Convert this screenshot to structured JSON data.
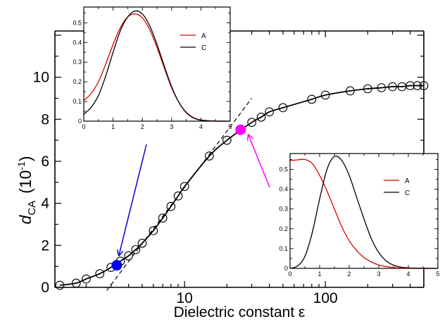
{
  "chart_data": [
    {
      "type": "scatter",
      "xlabel": "Dielectric constant ε",
      "ylabel": {
        "main": "d",
        "sub": "CA",
        "unit_base": "(10",
        "unit_exp": "-1",
        "unit_close": ")"
      },
      "xscale": "log",
      "xlim": [
        1.2,
        500
      ],
      "ylim": [
        0,
        12.2
      ],
      "x_ticks": [
        10,
        100
      ],
      "x_tick_labels": [
        "10",
        "100"
      ],
      "y_ticks": [
        0,
        2,
        4,
        6,
        8,
        10
      ],
      "y_tick_labels": [
        "0",
        "2",
        "4",
        "6",
        "8",
        "10"
      ],
      "series": [
        {
          "marker": "open-circle",
          "x": [
            1.3,
            1.7,
            2.0,
            2.5,
            3.0,
            3.5,
            4.0,
            4.5,
            5.0,
            6.0,
            7.0,
            8.0,
            9.0,
            10.0,
            15.0,
            20.0,
            30.0,
            35.0,
            40.0,
            50.0,
            80.0,
            100.0,
            150.0,
            200.0,
            250.0,
            300.0,
            350.0,
            400.0,
            450.0,
            500.0
          ],
          "y": [
            0.1,
            0.2,
            0.4,
            0.65,
            0.95,
            1.25,
            1.5,
            1.8,
            2.1,
            2.7,
            3.3,
            3.85,
            4.35,
            4.8,
            6.25,
            7.0,
            7.85,
            8.1,
            8.35,
            8.55,
            8.95,
            9.15,
            9.35,
            9.45,
            9.5,
            9.55,
            9.55,
            9.6,
            9.6,
            9.6
          ]
        }
      ],
      "fit_curve": {
        "style": "solid",
        "x": [
          1.3,
          1.7,
          2.0,
          2.5,
          3.0,
          3.5,
          4.0,
          4.5,
          5.0,
          6.0,
          7.0,
          8.0,
          9.0,
          10.0,
          15.0,
          20.0,
          30.0,
          35.0,
          40.0,
          50.0,
          80.0,
          100.0,
          150.0,
          200.0,
          250.0,
          300.0,
          350.0,
          400.0,
          450.0,
          500.0
        ],
        "y": [
          0.1,
          0.2,
          0.4,
          0.65,
          0.95,
          1.25,
          1.5,
          1.8,
          2.1,
          2.7,
          3.3,
          3.85,
          4.35,
          4.8,
          6.25,
          7.0,
          7.85,
          8.1,
          8.35,
          8.55,
          8.95,
          9.15,
          9.35,
          9.45,
          9.5,
          9.55,
          9.55,
          9.6,
          9.6,
          9.6
        ]
      },
      "linear_fit": {
        "style": "dashed",
        "x": [
          2.8,
          30.0
        ],
        "y": [
          -0.15,
          9.0
        ]
      },
      "highlights": [
        {
          "x": 3.3,
          "y": 1.05,
          "color": "#0000ee",
          "arrow_color": "#0000cc"
        },
        {
          "x": 25.0,
          "y": 7.5,
          "color": "#ff00ff",
          "arrow_color": "#ff00ff"
        }
      ]
    },
    {
      "type": "line",
      "xlim": [
        0,
        5
      ],
      "ylim": [
        0,
        0.58
      ],
      "x_ticks": [
        0,
        1,
        2,
        3,
        4,
        5
      ],
      "x_tick_labels": [
        "0",
        "1",
        "2",
        "3",
        "4",
        "5"
      ],
      "y_ticks": [
        0,
        0.1,
        0.2,
        0.3,
        0.4,
        0.5
      ],
      "y_tick_labels": [
        "0",
        "0.1",
        "0.2",
        "0.3",
        "0.4",
        "0.5"
      ],
      "legend_position": "top-right",
      "series": [
        {
          "name": "A",
          "color": "#dd0000",
          "x": [
            0,
            0.25,
            0.5,
            0.75,
            1.0,
            1.25,
            1.5,
            1.75,
            2.0,
            2.25,
            2.5,
            2.75,
            3.0,
            3.25,
            3.5,
            3.75,
            4.0,
            4.5,
            5.0
          ],
          "y": [
            0.105,
            0.14,
            0.2,
            0.29,
            0.39,
            0.475,
            0.53,
            0.545,
            0.525,
            0.465,
            0.375,
            0.27,
            0.17,
            0.095,
            0.045,
            0.018,
            0.006,
            0.0005,
            0.0
          ]
        },
        {
          "name": "C",
          "color": "#000000",
          "x": [
            0,
            0.25,
            0.5,
            0.75,
            1.0,
            1.25,
            1.5,
            1.75,
            2.0,
            2.25,
            2.5,
            2.75,
            3.0,
            3.25,
            3.5,
            3.75,
            4.0,
            4.5,
            5.0
          ],
          "y": [
            0.035,
            0.07,
            0.13,
            0.23,
            0.35,
            0.46,
            0.53,
            0.56,
            0.545,
            0.485,
            0.39,
            0.28,
            0.175,
            0.095,
            0.043,
            0.016,
            0.005,
            0.0003,
            0.0
          ]
        }
      ]
    },
    {
      "type": "line",
      "xlim": [
        0,
        5
      ],
      "ylim": [
        0,
        0.58
      ],
      "x_ticks": [
        0,
        1,
        2,
        3,
        4,
        5
      ],
      "x_tick_labels": [
        "0",
        "1",
        "2",
        "3",
        "4",
        "5"
      ],
      "y_ticks": [
        0,
        0.1,
        0.2,
        0.3,
        0.4,
        0.5
      ],
      "y_tick_labels": [
        "0",
        "0.1",
        "0.2",
        "0.3",
        "0.4",
        "0.5"
      ],
      "legend_position": "top-right",
      "series": [
        {
          "name": "A",
          "color": "#dd0000",
          "x": [
            0,
            0.25,
            0.5,
            0.75,
            1.0,
            1.25,
            1.5,
            1.75,
            2.0,
            2.25,
            2.5,
            2.75,
            3.0,
            3.25,
            3.5,
            3.75,
            4.0,
            4.5,
            5.0
          ],
          "y": [
            0.545,
            0.548,
            0.55,
            0.53,
            0.47,
            0.39,
            0.3,
            0.21,
            0.14,
            0.09,
            0.055,
            0.032,
            0.017,
            0.009,
            0.004,
            0.0015,
            0.0006,
            0.0001,
            0.0
          ]
        },
        {
          "name": "C",
          "color": "#000000",
          "x": [
            0,
            0.25,
            0.5,
            0.75,
            1.0,
            1.25,
            1.5,
            1.75,
            2.0,
            2.25,
            2.5,
            2.75,
            3.0,
            3.25,
            3.5,
            3.75,
            4.0,
            4.5,
            5.0
          ],
          "y": [
            0.0,
            0.012,
            0.06,
            0.18,
            0.35,
            0.5,
            0.565,
            0.545,
            0.47,
            0.36,
            0.25,
            0.15,
            0.08,
            0.038,
            0.016,
            0.006,
            0.002,
            0.0002,
            0.0
          ]
        }
      ]
    }
  ]
}
